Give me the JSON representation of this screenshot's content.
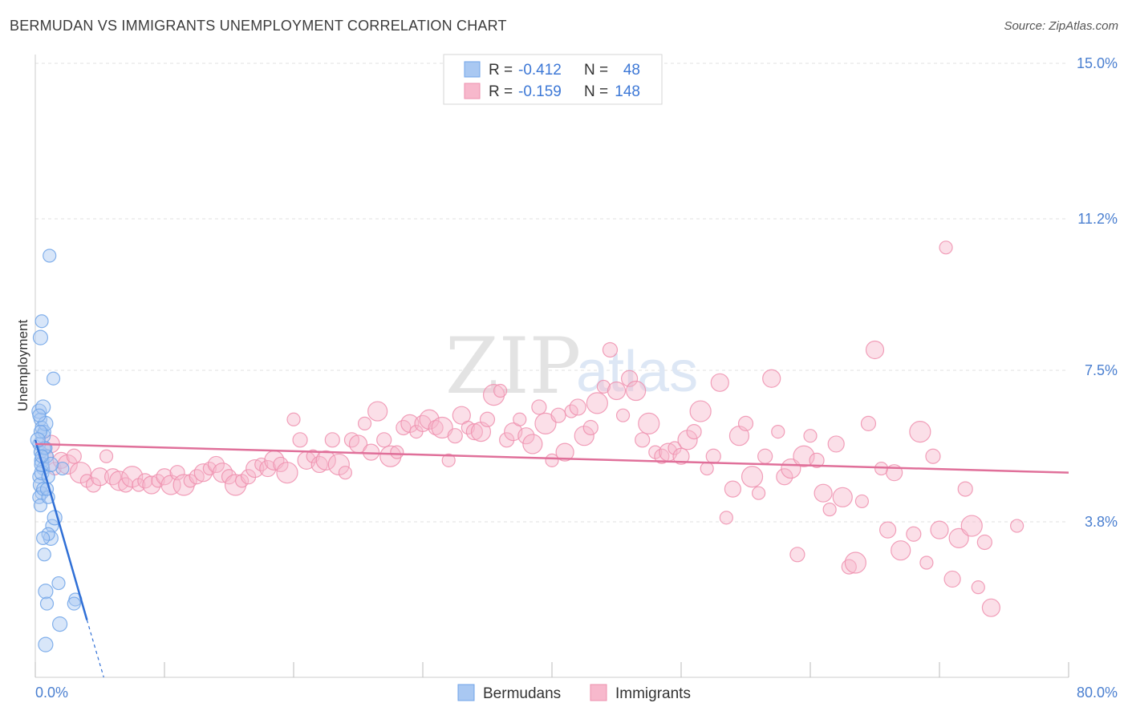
{
  "header": {
    "title": "BERMUDAN VS IMMIGRANTS UNEMPLOYMENT CORRELATION CHART",
    "source": "Source: ZipAtlas.com"
  },
  "watermark": {
    "zip": "ZIP",
    "atlas": "atlas"
  },
  "legend": {
    "rows": [
      {
        "r_label": "R =",
        "r_value": "-0.412",
        "n_label": "N =",
        "n_value": "48",
        "color": "#a9c8f2"
      },
      {
        "r_label": "R =",
        "r_value": "-0.159",
        "n_label": "N =",
        "n_value": "148",
        "color": "#f7b8cc"
      }
    ]
  },
  "bottom_legend": {
    "items": [
      {
        "label": "Bermudans",
        "color": "#a9c8f2"
      },
      {
        "label": "Immigrants",
        "color": "#f7b8cc"
      }
    ]
  },
  "chart_data": {
    "type": "scatter",
    "title": "BERMUDAN VS IMMIGRANTS UNEMPLOYMENT CORRELATION CHART",
    "xlabel": "",
    "ylabel": "Unemployment",
    "xlim": [
      0,
      80
    ],
    "ylim": [
      0,
      15
    ],
    "x_tick_labels": [
      "0.0%",
      "80.0%"
    ],
    "y_ticks": [
      3.8,
      7.5,
      11.2,
      15.0
    ],
    "y_tick_labels": [
      "3.8%",
      "7.5%",
      "11.2%",
      "15.0%"
    ],
    "grid": true,
    "series": [
      {
        "name": "Bermudans",
        "color": "#6fa3e8",
        "fill": "#a9c8f2",
        "trend": {
          "x": [
            0.0,
            4.0
          ],
          "y": [
            5.8,
            1.4
          ],
          "dashed_to": [
            5.3,
            0.0
          ],
          "color": "#2f6fd6"
        },
        "points": [
          [
            0.3,
            6.5
          ],
          [
            0.4,
            6.3
          ],
          [
            0.5,
            6.1
          ],
          [
            0.6,
            5.9
          ],
          [
            0.3,
            5.7
          ],
          [
            0.4,
            5.5
          ],
          [
            0.5,
            5.3
          ],
          [
            0.6,
            5.1
          ],
          [
            0.3,
            4.9
          ],
          [
            0.4,
            4.7
          ],
          [
            0.5,
            4.5
          ],
          [
            0.3,
            4.4
          ],
          [
            0.6,
            6.6
          ],
          [
            0.7,
            6.0
          ],
          [
            0.8,
            5.6
          ],
          [
            0.5,
            5.0
          ],
          [
            0.4,
            4.2
          ],
          [
            0.5,
            8.7
          ],
          [
            0.4,
            8.3
          ],
          [
            1.1,
            10.3
          ],
          [
            1.4,
            7.3
          ],
          [
            0.8,
            6.2
          ],
          [
            1.0,
            4.9
          ],
          [
            1.3,
            3.7
          ],
          [
            1.2,
            3.4
          ],
          [
            1.0,
            3.5
          ],
          [
            0.6,
            3.4
          ],
          [
            1.5,
            3.9
          ],
          [
            2.1,
            5.1
          ],
          [
            1.8,
            2.3
          ],
          [
            0.8,
            2.1
          ],
          [
            0.9,
            1.8
          ],
          [
            3.1,
            1.9
          ],
          [
            1.9,
            1.3
          ],
          [
            3.0,
            1.8
          ],
          [
            0.7,
            3.0
          ],
          [
            0.5,
            5.2
          ],
          [
            0.4,
            6.0
          ],
          [
            0.9,
            5.4
          ],
          [
            1.2,
            5.2
          ],
          [
            0.6,
            4.6
          ],
          [
            1.0,
            4.4
          ],
          [
            0.8,
            0.8
          ],
          [
            0.3,
            6.4
          ],
          [
            0.7,
            5.6
          ],
          [
            0.2,
            5.8
          ],
          [
            0.5,
            5.4
          ],
          [
            0.9,
            4.6
          ]
        ]
      },
      {
        "name": "Immigrants",
        "color": "#ee8fae",
        "fill": "#f7b8cc",
        "trend": {
          "x": [
            0.0,
            80.0
          ],
          "y": [
            5.7,
            5.0
          ],
          "color": "#e0709a"
        },
        "points": [
          [
            0.8,
            5.4
          ],
          [
            1.2,
            5.7
          ],
          [
            1.5,
            5.1
          ],
          [
            2.0,
            5.3
          ],
          [
            2.5,
            5.2
          ],
          [
            3.0,
            5.4
          ],
          [
            3.5,
            5.0
          ],
          [
            4.0,
            4.8
          ],
          [
            4.5,
            4.7
          ],
          [
            5.0,
            4.9
          ],
          [
            5.5,
            5.4
          ],
          [
            6.0,
            4.9
          ],
          [
            6.5,
            4.8
          ],
          [
            7.0,
            4.7
          ],
          [
            7.5,
            4.9
          ],
          [
            8.0,
            4.7
          ],
          [
            8.5,
            4.8
          ],
          [
            9.0,
            4.7
          ],
          [
            9.5,
            4.8
          ],
          [
            10.0,
            4.9
          ],
          [
            10.5,
            4.7
          ],
          [
            11.0,
            5.0
          ],
          [
            11.5,
            4.7
          ],
          [
            12.0,
            4.8
          ],
          [
            12.5,
            4.9
          ],
          [
            13.0,
            5.0
          ],
          [
            13.5,
            5.1
          ],
          [
            14.0,
            5.2
          ],
          [
            14.5,
            5.0
          ],
          [
            15.0,
            4.9
          ],
          [
            15.5,
            4.7
          ],
          [
            16.0,
            4.8
          ],
          [
            16.5,
            4.9
          ],
          [
            17.0,
            5.1
          ],
          [
            17.5,
            5.2
          ],
          [
            18.0,
            5.1
          ],
          [
            18.5,
            5.3
          ],
          [
            19.0,
            5.2
          ],
          [
            19.5,
            5.0
          ],
          [
            20.0,
            6.3
          ],
          [
            20.5,
            5.8
          ],
          [
            21.0,
            5.3
          ],
          [
            21.5,
            5.4
          ],
          [
            22.0,
            5.2
          ],
          [
            22.5,
            5.3
          ],
          [
            23.0,
            5.8
          ],
          [
            23.5,
            5.2
          ],
          [
            24.0,
            5.0
          ],
          [
            24.5,
            5.8
          ],
          [
            25.0,
            5.7
          ],
          [
            25.5,
            6.2
          ],
          [
            26.0,
            5.5
          ],
          [
            26.5,
            6.5
          ],
          [
            27.0,
            5.8
          ],
          [
            27.5,
            5.4
          ],
          [
            28.0,
            5.5
          ],
          [
            28.5,
            6.1
          ],
          [
            29.0,
            6.2
          ],
          [
            29.5,
            6.0
          ],
          [
            30.0,
            6.2
          ],
          [
            30.5,
            6.3
          ],
          [
            31.0,
            6.1
          ],
          [
            31.5,
            6.1
          ],
          [
            32.0,
            5.3
          ],
          [
            32.5,
            5.9
          ],
          [
            33.0,
            6.4
          ],
          [
            33.5,
            6.1
          ],
          [
            34.0,
            6.0
          ],
          [
            34.5,
            6.0
          ],
          [
            35.0,
            6.3
          ],
          [
            35.5,
            6.9
          ],
          [
            36.0,
            7.0
          ],
          [
            36.5,
            5.8
          ],
          [
            37.0,
            6.0
          ],
          [
            37.5,
            6.3
          ],
          [
            38.0,
            5.9
          ],
          [
            38.5,
            5.7
          ],
          [
            39.0,
            6.6
          ],
          [
            39.5,
            6.2
          ],
          [
            40.0,
            5.3
          ],
          [
            40.5,
            6.4
          ],
          [
            41.0,
            5.5
          ],
          [
            41.5,
            6.5
          ],
          [
            42.0,
            6.6
          ],
          [
            42.5,
            5.9
          ],
          [
            43.0,
            6.1
          ],
          [
            43.5,
            6.7
          ],
          [
            44.0,
            7.1
          ],
          [
            44.5,
            8.0
          ],
          [
            45.0,
            7.0
          ],
          [
            45.5,
            6.4
          ],
          [
            46.0,
            7.3
          ],
          [
            46.5,
            7.0
          ],
          [
            47.0,
            5.8
          ],
          [
            47.5,
            6.2
          ],
          [
            48.0,
            5.5
          ],
          [
            48.5,
            5.4
          ],
          [
            49.0,
            5.5
          ],
          [
            49.5,
            5.6
          ],
          [
            50.0,
            5.4
          ],
          [
            50.5,
            5.8
          ],
          [
            51.0,
            6.0
          ],
          [
            51.5,
            6.5
          ],
          [
            52.0,
            5.1
          ],
          [
            52.5,
            5.4
          ],
          [
            53.0,
            7.2
          ],
          [
            53.5,
            3.9
          ],
          [
            54.0,
            4.6
          ],
          [
            54.5,
            5.9
          ],
          [
            55.0,
            6.2
          ],
          [
            55.5,
            4.9
          ],
          [
            56.0,
            4.5
          ],
          [
            56.5,
            5.4
          ],
          [
            57.0,
            7.3
          ],
          [
            57.5,
            6.0
          ],
          [
            58.0,
            4.9
          ],
          [
            58.5,
            5.1
          ],
          [
            59.0,
            3.0
          ],
          [
            59.5,
            5.4
          ],
          [
            60.0,
            5.9
          ],
          [
            60.5,
            5.3
          ],
          [
            61.0,
            4.5
          ],
          [
            61.5,
            4.1
          ],
          [
            62.0,
            5.7
          ],
          [
            62.5,
            4.4
          ],
          [
            63.0,
            2.7
          ],
          [
            63.5,
            2.8
          ],
          [
            64.0,
            4.3
          ],
          [
            64.5,
            6.2
          ],
          [
            65.0,
            8.0
          ],
          [
            65.5,
            5.1
          ],
          [
            66.0,
            3.6
          ],
          [
            67.0,
            3.1
          ],
          [
            68.0,
            3.5
          ],
          [
            68.5,
            6.0
          ],
          [
            69.0,
            2.8
          ],
          [
            69.5,
            5.4
          ],
          [
            70.0,
            3.6
          ],
          [
            70.5,
            10.5
          ],
          [
            71.0,
            2.4
          ],
          [
            71.5,
            3.4
          ],
          [
            72.0,
            4.6
          ],
          [
            72.5,
            3.7
          ],
          [
            73.0,
            2.2
          ],
          [
            73.5,
            3.3
          ],
          [
            74.0,
            1.7
          ],
          [
            76.0,
            3.7
          ],
          [
            66.5,
            5.0
          ]
        ]
      }
    ]
  }
}
